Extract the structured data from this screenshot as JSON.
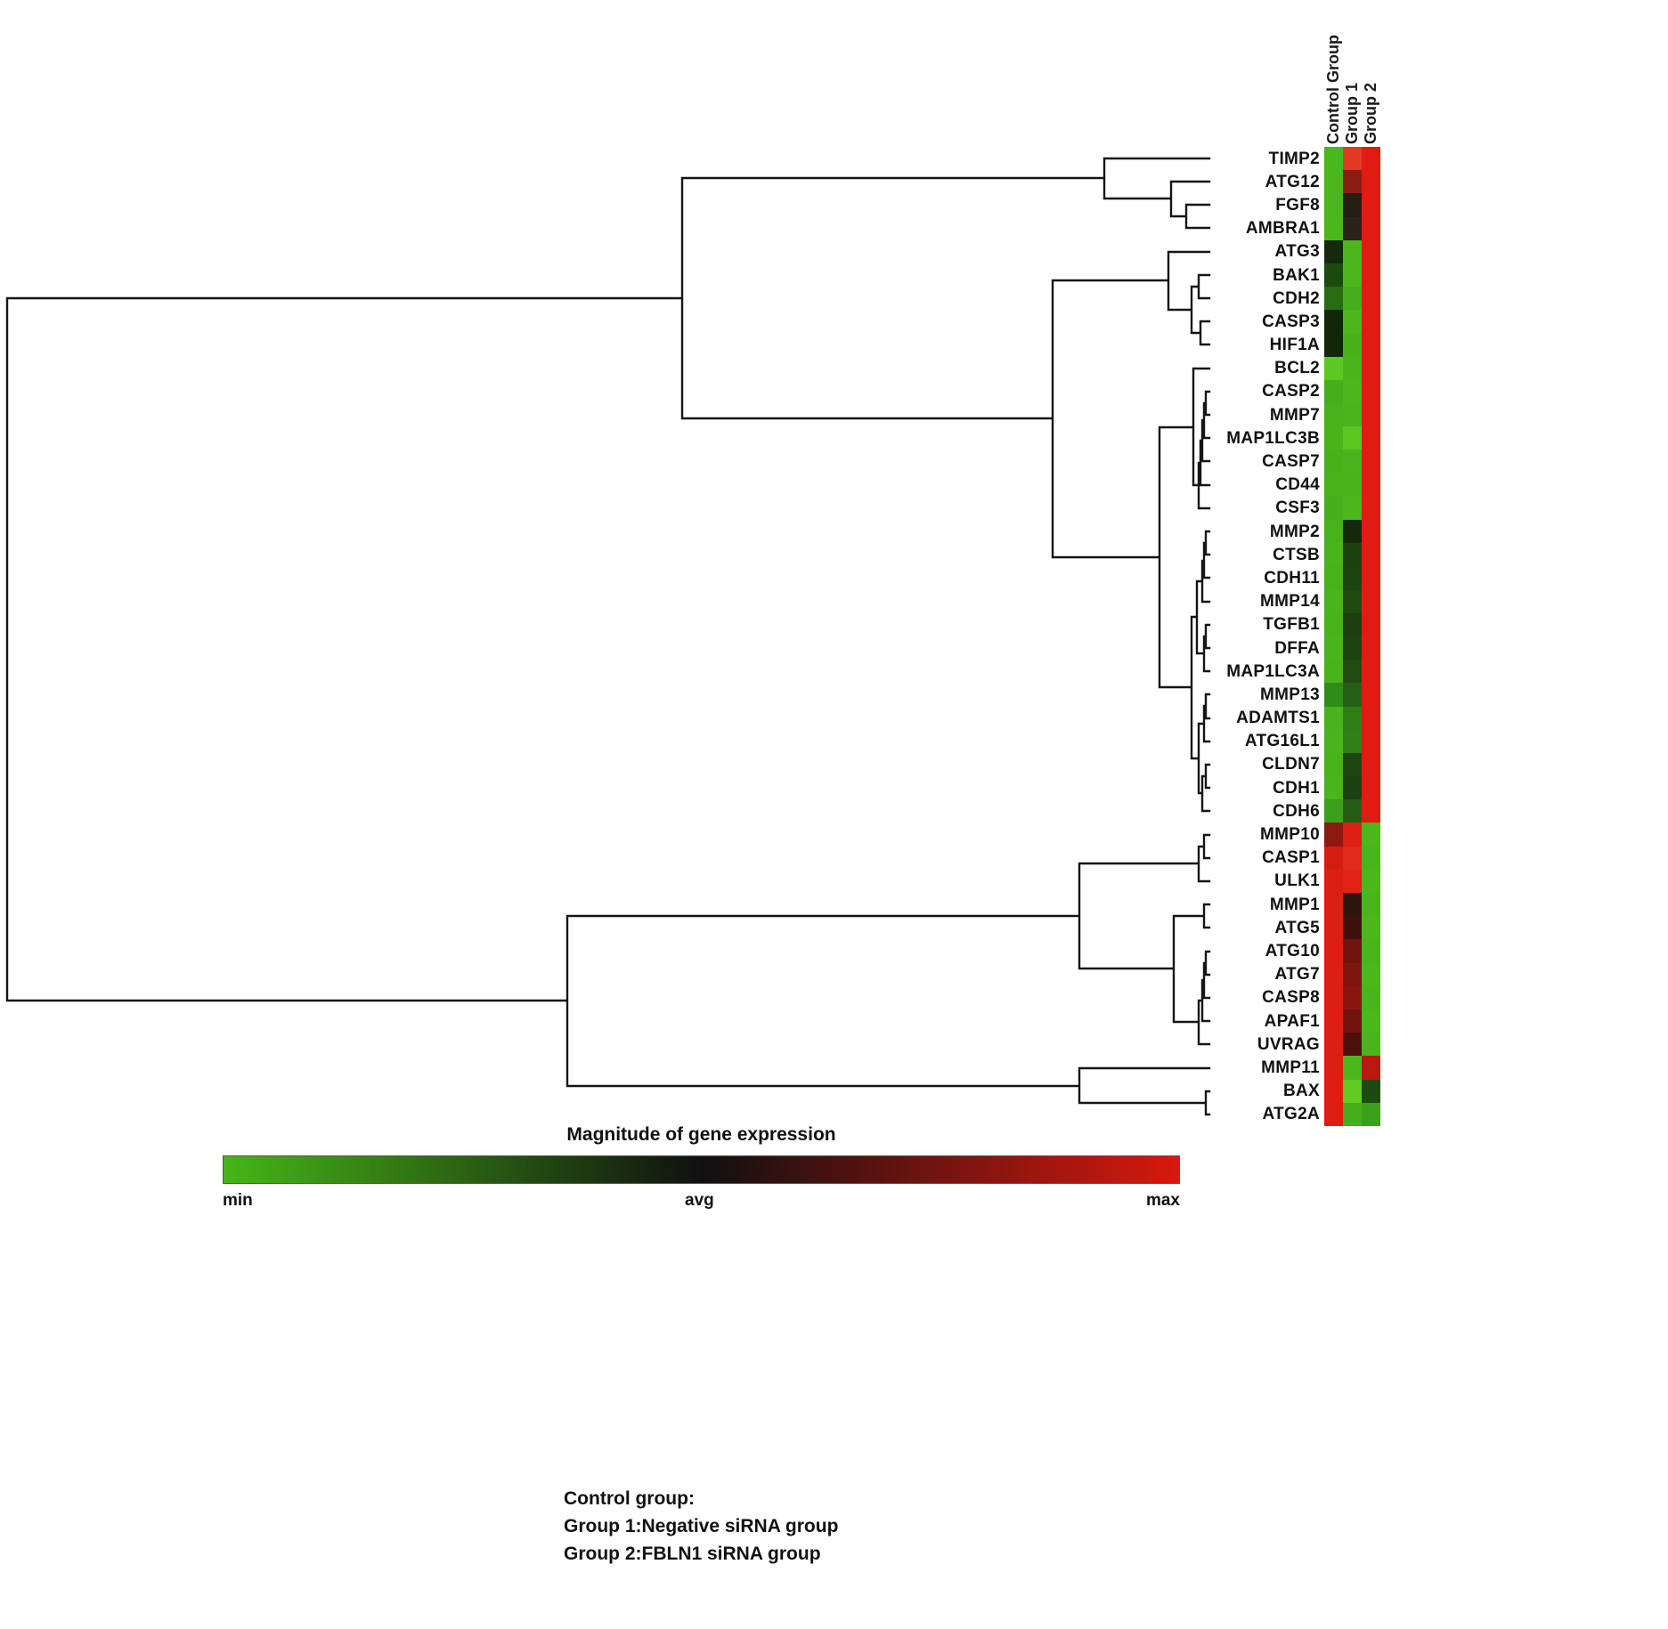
{
  "figure": {
    "columns": [
      "Control Group",
      "Group 1",
      "Group 2"
    ],
    "colorbar": {
      "title": "Magnitude of gene expression",
      "min_label": "min",
      "avg_label": "avg",
      "max_label": "max",
      "min_color": "#46b615",
      "avg_color": "#101010",
      "max_color": "#d8180e"
    },
    "legend_lines": [
      "Control group:",
      "Group 1:Negative siRNA group",
      "Group 2:FBLN1 siRNA group"
    ]
  },
  "chart_data": {
    "type": "heatmap",
    "title": "Magnitude of gene expression",
    "columns": [
      "Control Group",
      "Group 1",
      "Group 2"
    ],
    "scale": {
      "min_label": "min",
      "avg_label": "avg",
      "max_label": "max",
      "min_color": "green",
      "avg_color": "black",
      "max_color": "red",
      "value_range": [
        -1,
        1
      ]
    },
    "legend": {
      "control": "Control group:",
      "group1": "Group 1:Negative siRNA group",
      "group2": "Group 2:FBLN1 siRNA group"
    },
    "rows": [
      {
        "gene": "TIMP2",
        "colors": [
          "#4cb61d",
          "#e03b24",
          "#df1b12"
        ],
        "values": [
          -0.85,
          0.85,
          0.95
        ]
      },
      {
        "gene": "ATG12",
        "colors": [
          "#4cb61d",
          "#8c1d12",
          "#df1b12"
        ],
        "values": [
          -0.85,
          0.45,
          0.95
        ]
      },
      {
        "gene": "FGF8",
        "colors": [
          "#4cb61d",
          "#231d14",
          "#df1b12"
        ],
        "values": [
          -0.85,
          0.05,
          0.95
        ]
      },
      {
        "gene": "AMBRA1",
        "colors": [
          "#4cb61d",
          "#2a2118",
          "#df1b12"
        ],
        "values": [
          -0.85,
          0.08,
          0.95
        ]
      },
      {
        "gene": "ATG3",
        "colors": [
          "#152a0d",
          "#4cb61d",
          "#df1b12"
        ],
        "values": [
          -0.1,
          -0.85,
          0.95
        ]
      },
      {
        "gene": "BAK1",
        "colors": [
          "#1e4a10",
          "#4cb61d",
          "#df1b12"
        ],
        "values": [
          -0.3,
          -0.85,
          0.95
        ]
      },
      {
        "gene": "CDH2",
        "colors": [
          "#2b6b14",
          "#45ae1c",
          "#df1b12"
        ],
        "values": [
          -0.45,
          -0.8,
          0.95
        ]
      },
      {
        "gene": "CASP3",
        "colors": [
          "#122708",
          "#4cb61d",
          "#df1b12"
        ],
        "values": [
          -0.1,
          -0.85,
          0.95
        ]
      },
      {
        "gene": "HIF1A",
        "colors": [
          "#132608",
          "#47b11c",
          "#df1b12"
        ],
        "values": [
          -0.1,
          -0.8,
          0.95
        ]
      },
      {
        "gene": "BCL2",
        "colors": [
          "#5ec822",
          "#49b41d",
          "#df1b12"
        ],
        "values": [
          -0.95,
          -0.82,
          0.95
        ]
      },
      {
        "gene": "CASP2",
        "colors": [
          "#45ae1b",
          "#4cb61d",
          "#df1b12"
        ],
        "values": [
          -0.8,
          -0.85,
          0.95
        ]
      },
      {
        "gene": "MMP7",
        "colors": [
          "#48b21c",
          "#4ab41d",
          "#df1b12"
        ],
        "values": [
          -0.82,
          -0.83,
          0.95
        ]
      },
      {
        "gene": "MAP1LC3B",
        "colors": [
          "#49b31d",
          "#5bc621",
          "#df1b12"
        ],
        "values": [
          -0.83,
          -0.92,
          0.95
        ]
      },
      {
        "gene": "CASP7",
        "colors": [
          "#47b11c",
          "#4ab41d",
          "#df1b12"
        ],
        "values": [
          -0.8,
          -0.83,
          0.95
        ]
      },
      {
        "gene": "CD44",
        "colors": [
          "#48b21c",
          "#49b31d",
          "#df1b12"
        ],
        "values": [
          -0.82,
          -0.82,
          0.95
        ]
      },
      {
        "gene": "CSF3",
        "colors": [
          "#46b01c",
          "#4cb61d",
          "#df1b12"
        ],
        "values": [
          -0.8,
          -0.85,
          0.95
        ]
      },
      {
        "gene": "MMP2",
        "colors": [
          "#48b21c",
          "#14290c",
          "#df1b12"
        ],
        "values": [
          -0.82,
          -0.1,
          0.95
        ]
      },
      {
        "gene": "CTSB",
        "colors": [
          "#4ab41d",
          "#1d4210",
          "#df1b12"
        ],
        "values": [
          -0.83,
          -0.28,
          0.95
        ]
      },
      {
        "gene": "CDH11",
        "colors": [
          "#48b21c",
          "#1d4310",
          "#df1b12"
        ],
        "values": [
          -0.82,
          -0.28,
          0.95
        ]
      },
      {
        "gene": "MMP14",
        "colors": [
          "#4ab41d",
          "#204a11",
          "#df1b12"
        ],
        "values": [
          -0.83,
          -0.32,
          0.95
        ]
      },
      {
        "gene": "TGFB1",
        "colors": [
          "#49b31d",
          "#1b3d0f",
          "#df1b12"
        ],
        "values": [
          -0.83,
          -0.26,
          0.95
        ]
      },
      {
        "gene": "DFFA",
        "colors": [
          "#4ab41d",
          "#1e430f",
          "#df1b12"
        ],
        "values": [
          -0.83,
          -0.28,
          0.95
        ]
      },
      {
        "gene": "MAP1LC3A",
        "colors": [
          "#49b31d",
          "#224a12",
          "#df1b12"
        ],
        "values": [
          -0.83,
          -0.32,
          0.95
        ]
      },
      {
        "gene": "MMP13",
        "colors": [
          "#2f8c17",
          "#266014",
          "#df1b12"
        ],
        "values": [
          -0.6,
          -0.42,
          0.95
        ]
      },
      {
        "gene": "ADAMTS1",
        "colors": [
          "#49b31d",
          "#2e7e16",
          "#df1b12"
        ],
        "values": [
          -0.83,
          -0.55,
          0.95
        ]
      },
      {
        "gene": "ATG16L1",
        "colors": [
          "#4ab41d",
          "#2f8016",
          "#df1b12"
        ],
        "values": [
          -0.83,
          -0.55,
          0.95
        ]
      },
      {
        "gene": "CLDN7",
        "colors": [
          "#48b21c",
          "#1e4511",
          "#df1b12"
        ],
        "values": [
          -0.82,
          -0.3,
          0.95
        ]
      },
      {
        "gene": "CDH1",
        "colors": [
          "#4ab41d",
          "#1c400f",
          "#df1b12"
        ],
        "values": [
          -0.83,
          -0.27,
          0.95
        ]
      },
      {
        "gene": "CDH6",
        "colors": [
          "#3da01a",
          "#275c13",
          "#df1b12"
        ],
        "values": [
          -0.7,
          -0.4,
          0.95
        ]
      },
      {
        "gene": "MMP10",
        "colors": [
          "#8c1a10",
          "#dc2015",
          "#4cb61d"
        ],
        "values": [
          0.45,
          0.92,
          -0.85
        ]
      },
      {
        "gene": "CASP1",
        "colors": [
          "#d41d12",
          "#e02b1b",
          "#4ab41d"
        ],
        "values": [
          0.9,
          0.88,
          -0.83
        ]
      },
      {
        "gene": "ULK1",
        "colors": [
          "#dd1e13",
          "#e02217",
          "#4cb61d"
        ],
        "values": [
          0.93,
          0.93,
          -0.85
        ]
      },
      {
        "gene": "MMP1",
        "colors": [
          "#dd1e13",
          "#2c1710",
          "#4ab41d"
        ],
        "values": [
          0.93,
          0.1,
          -0.83
        ]
      },
      {
        "gene": "ATG5",
        "colors": [
          "#dd1e13",
          "#3c100b",
          "#4cb61d"
        ],
        "values": [
          0.93,
          0.15,
          -0.85
        ]
      },
      {
        "gene": "ATG10",
        "colors": [
          "#dd1e13",
          "#70140d",
          "#4ab41d"
        ],
        "values": [
          0.93,
          0.38,
          -0.83
        ]
      },
      {
        "gene": "ATG7",
        "colors": [
          "#dd1e13",
          "#7c150e",
          "#4cb61d"
        ],
        "values": [
          0.93,
          0.42,
          -0.85
        ]
      },
      {
        "gene": "CASP8",
        "colors": [
          "#dd1e13",
          "#86160f",
          "#4ab41d"
        ],
        "values": [
          0.93,
          0.45,
          -0.83
        ]
      },
      {
        "gene": "APAF1",
        "colors": [
          "#dd1e13",
          "#72140d",
          "#4cb61d"
        ],
        "values": [
          0.93,
          0.38,
          -0.85
        ]
      },
      {
        "gene": "UVRAG",
        "colors": [
          "#dd1e13",
          "#4a110b",
          "#4ab41d"
        ],
        "values": [
          0.93,
          0.2,
          -0.83
        ]
      },
      {
        "gene": "MMP11",
        "colors": [
          "#dd1e13",
          "#4cb61d",
          "#b81a10"
        ],
        "values": [
          0.93,
          -0.85,
          0.6
        ]
      },
      {
        "gene": "BAX",
        "colors": [
          "#dd1e13",
          "#63cc24",
          "#1d4a10"
        ],
        "values": [
          0.93,
          -0.95,
          -0.3
        ]
      },
      {
        "gene": "ATG2A",
        "colors": [
          "#dd1e13",
          "#45ae1b",
          "#3da01a"
        ],
        "values": [
          0.93,
          -0.8,
          -0.7
        ]
      }
    ]
  }
}
